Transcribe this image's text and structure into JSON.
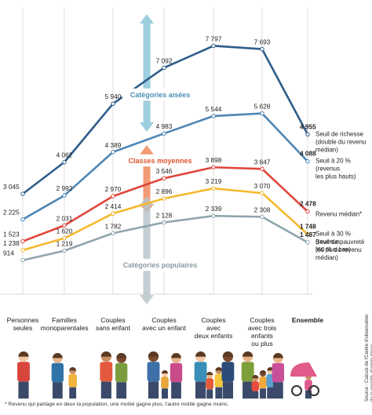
{
  "chart_data": {
    "type": "line",
    "categories": [
      "Personnes seules",
      "Familles monoparentales",
      "Couples sans enfant",
      "Couples avec un enfant",
      "Couples avec deux enfants",
      "Couples avec trois enfants ou plus",
      "Ensemble"
    ],
    "ylim": [
      0,
      8000
    ],
    "grid": "vertical",
    "series": [
      {
        "name": "Seuil de richesse (double du revenu médian)",
        "color": "#2e5d8a",
        "values": [
          3045,
          4062,
          5940,
          7092,
          7797,
          7693,
          4955
        ]
      },
      {
        "name": "Seuil à 20 % (revenus les plus hauts)",
        "color": "#4d86b5",
        "values": [
          2225,
          2992,
          4389,
          4983,
          5544,
          5628,
          4088
        ]
      },
      {
        "name": "Revenu médian*",
        "color": "#e0463c",
        "values": [
          1523,
          2031,
          2970,
          3546,
          3898,
          3847,
          2478
        ]
      },
      {
        "name": "Seuil à 30 % (revenus les plus bas)",
        "color": "#f5b82e",
        "values": [
          1238,
          1620,
          2414,
          2896,
          3219,
          3070,
          1748
        ]
      },
      {
        "name": "Seuil de pauvreté (60 % du revenu médian)",
        "color": "#8fa5ad",
        "values": [
          914,
          1219,
          1782,
          2128,
          2339,
          2308,
          1487
        ]
      }
    ],
    "value_labels": [
      [
        "3 045",
        "4 062",
        "5 940",
        "7 092",
        "7 797",
        "7 693",
        "4 955"
      ],
      [
        "2 225",
        "2 992",
        "4 389",
        "4 983",
        "5 544",
        "5 628",
        "4 088"
      ],
      [
        "1 523",
        "2 031",
        "2 970",
        "3 546",
        "3 898",
        "3 847",
        "2 478"
      ],
      [
        "1 238",
        "1 620",
        "2 414",
        "2 896",
        "3 219",
        "3 070",
        "1 748"
      ],
      [
        "914",
        "1 219",
        "1 782",
        "2 128",
        "2 339",
        "2 308",
        "1 487"
      ]
    ],
    "end_labels": [
      [
        "Seuil de richesse",
        "(double du revenu",
        "médian)"
      ],
      [
        "Seuil à 20 %",
        "(revenus",
        "les plus hauts)"
      ],
      [
        "Revenu médian*"
      ],
      [
        "Seuil à 30 %",
        "(revenus",
        "les plus bas)"
      ],
      [
        "Seuil de pauvreté",
        "(60 % du revenu",
        "médian)"
      ]
    ],
    "bands": [
      {
        "label": "Catégories aisées",
        "color": "#8cc6d8"
      },
      {
        "label": "Classes moyennes",
        "color": "#f08a5d"
      },
      {
        "label": "Catégories populaires",
        "color": "#b9c6cb"
      }
    ]
  },
  "axis_labels": [
    [
      "Personnes",
      "seules"
    ],
    [
      "Familles",
      "monoparentales"
    ],
    [
      "Couples",
      "sans enfant"
    ],
    [
      "Couples",
      "avec un enfant"
    ],
    [
      "Couples",
      "avec",
      "deux enfants"
    ],
    [
      "Couples",
      "avec trois enfants",
      "ou plus"
    ],
    [
      "Ensemble"
    ]
  ],
  "source": "Source : Calculs de l'Centre d'observation\nde la société, d'après Insee",
  "footnote": "* Revenu qui partage en deux la population, une moitié gagne plus, l'autre moitié gagne moins.",
  "illustration": "families-illustration"
}
